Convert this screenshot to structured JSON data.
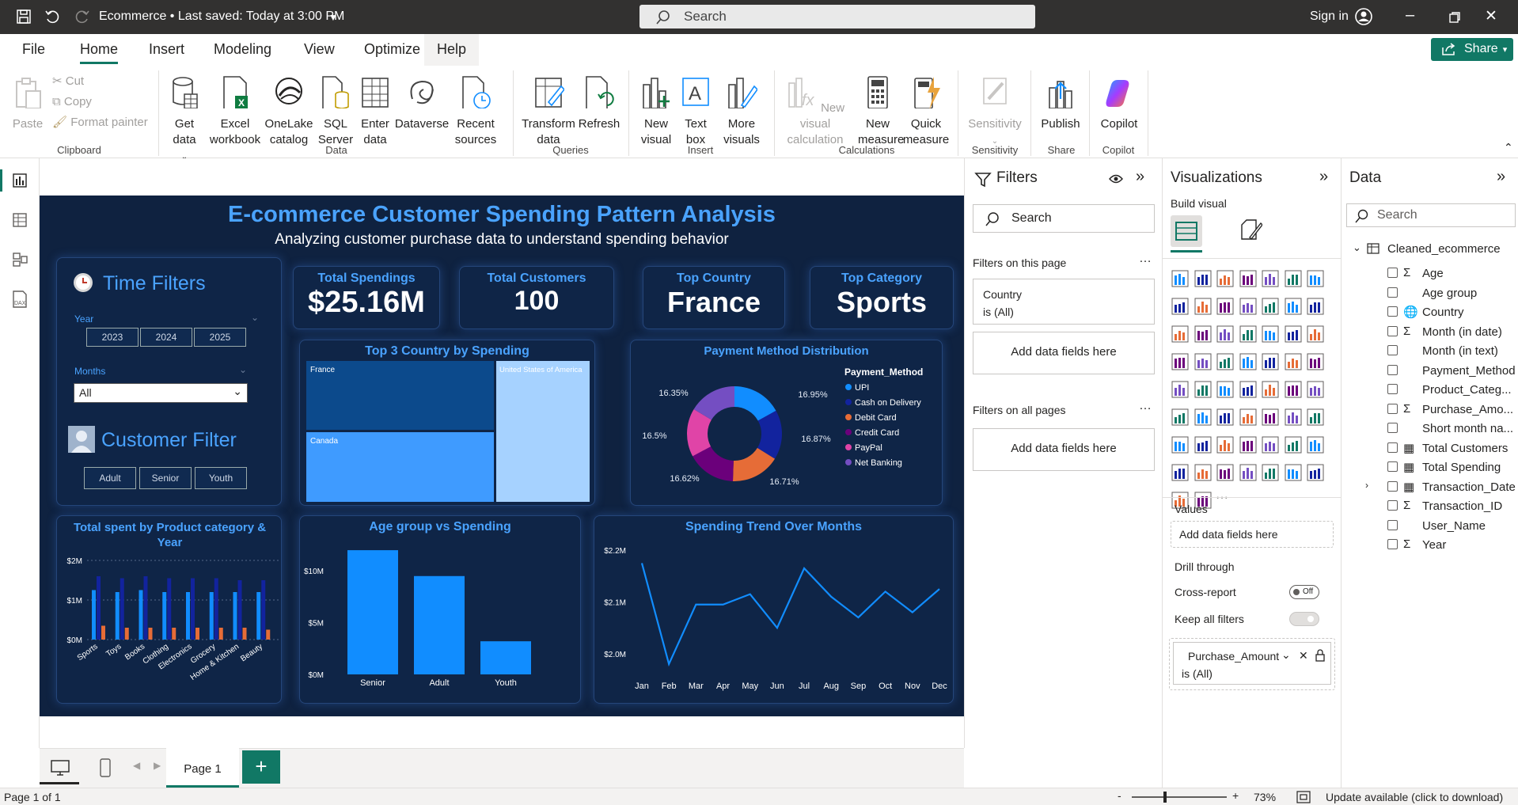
{
  "window": {
    "title": "Ecommerce • Last saved: Today at 3:00 PM",
    "search_placeholder": "Search",
    "sign_in": "Sign in"
  },
  "menu": {
    "items": [
      "File",
      "Home",
      "Insert",
      "Modeling",
      "View",
      "Optimize",
      "Help"
    ],
    "active": "Home",
    "share": "Share"
  },
  "ribbon": {
    "clipboard": {
      "paste": "Paste",
      "cut": "Cut",
      "copy": "Copy",
      "format_painter": "Format painter",
      "group": "Clipboard"
    },
    "data": {
      "get_data": "Get data",
      "excel": "Excel workbook",
      "onelake": "OneLake catalog",
      "sql": "SQL Server",
      "enter": "Enter data",
      "dataverse": "Dataverse",
      "recent": "Recent sources",
      "group": "Data"
    },
    "queries": {
      "transform": "Transform data",
      "refresh": "Refresh",
      "group": "Queries"
    },
    "insert": {
      "new_visual": "New visual",
      "text_box": "Text box",
      "more_visuals": "More visuals",
      "group": "Insert"
    },
    "calculations": {
      "new_visual_calc": "New visual calculation",
      "new_measure": "New measure",
      "quick_measure": "Quick measure",
      "group": "Calculations"
    },
    "sensitivity": {
      "label": "Sensitivity",
      "group": "Sensitivity"
    },
    "share": {
      "publish": "Publish",
      "group": "Share"
    },
    "copilot": {
      "label": "Copilot",
      "group": "Copilot"
    }
  },
  "report": {
    "title": "E-commerce Customer Spending Pattern Analysis",
    "subtitle": "Analyzing customer purchase data to understand spending behavior",
    "time_filters": {
      "title": "Time Filters",
      "year_label": "Year",
      "years": [
        "2023",
        "2024",
        "2025"
      ],
      "months_label": "Months",
      "months_value": "All"
    },
    "customer_filter": {
      "title": "Customer Filter",
      "options": [
        "Adult",
        "Senior",
        "Youth"
      ]
    },
    "kpis": [
      {
        "label": "Total Spendings",
        "value": "$25.16M"
      },
      {
        "label": "Total Customers",
        "value": "100"
      },
      {
        "label": "Top Country",
        "value": "France"
      },
      {
        "label": "Top Category",
        "value": "Sports"
      }
    ]
  },
  "chart_data": [
    {
      "type": "treemap",
      "title": "Top 3 Country by Spending",
      "categories": [
        "France",
        "Canada",
        "United States of America"
      ]
    },
    {
      "type": "pie",
      "title": "Payment Method Distribution",
      "legend_title": "Payment_Method",
      "legend_position": "right",
      "categories": [
        "UPI",
        "Cash on Delivery",
        "Debit Card",
        "Credit Card",
        "PayPal",
        "Net Banking"
      ],
      "values": [
        16.95,
        16.87,
        16.71,
        16.62,
        16.5,
        16.35
      ],
      "value_labels": [
        "16.95%",
        "16.87%",
        "16.71%",
        "16.62%",
        "16.5%",
        "16.35%"
      ],
      "colors": [
        "#118dff",
        "#12239e",
        "#e66c37",
        "#6b007b",
        "#e044a7",
        "#744ec2"
      ]
    },
    {
      "type": "bar",
      "title": "Total spent by Product category & Year",
      "categories": [
        "Sports",
        "Toys",
        "Books",
        "Clothing",
        "Electronics",
        "Grocery",
        "Home & Kitchen",
        "Beauty"
      ],
      "y_ticks": [
        "$0M",
        "$1M",
        "$2M"
      ],
      "ylim": [
        0,
        2
      ],
      "series": [
        {
          "values": [
            1.25,
            1.2,
            1.25,
            1.2,
            1.2,
            1.2,
            1.2,
            1.2
          ]
        },
        {
          "values": [
            1.6,
            1.55,
            1.6,
            1.55,
            1.55,
            1.55,
            1.5,
            1.5
          ]
        },
        {
          "values": [
            0.35,
            0.3,
            0.3,
            0.3,
            0.3,
            0.3,
            0.3,
            0.25
          ]
        }
      ],
      "colors": [
        "#118dff",
        "#12239e",
        "#e66c37"
      ]
    },
    {
      "type": "bar",
      "title": "Age group vs Spending",
      "categories": [
        "Senior",
        "Adult",
        "Youth"
      ],
      "values": [
        12,
        9.5,
        3.2
      ],
      "y_ticks": [
        "$0M",
        "$5M",
        "$10M"
      ],
      "ylim": [
        0,
        13
      ]
    },
    {
      "type": "line",
      "title": "Spending Trend Over Months",
      "x": [
        "Jan",
        "Feb",
        "Mar",
        "Apr",
        "May",
        "Jun",
        "Jul",
        "Aug",
        "Sep",
        "Oct",
        "Nov",
        "Dec"
      ],
      "values": [
        2.175,
        1.98,
        2.095,
        2.095,
        2.115,
        2.05,
        2.165,
        2.11,
        2.07,
        2.12,
        2.08,
        2.125
      ],
      "y_ticks": [
        "$2.0M",
        "$2.1M",
        "$2.2M"
      ],
      "ylim": [
        1.96,
        2.22
      ]
    }
  ],
  "filters": {
    "title": "Filters",
    "search": "Search",
    "on_page": "Filters on this page",
    "country_filter": "Country",
    "country_state": "is (All)",
    "add_fields": "Add data fields here",
    "on_all": "Filters on all pages"
  },
  "visualizations": {
    "title": "Visualizations",
    "build": "Build visual",
    "values": "Values",
    "add_fields": "Add data fields here",
    "drill": "Drill through",
    "cross_report": "Cross-report",
    "off": "Off",
    "keep_filters": "Keep all filters",
    "filter_field": "Purchase_Amount",
    "filter_state": "is (All)"
  },
  "data_pane": {
    "title": "Data",
    "search": "Search",
    "table": "Cleaned_ecommerce",
    "fields": [
      {
        "name": "Age",
        "icon": "Σ"
      },
      {
        "name": "Age group",
        "icon": ""
      },
      {
        "name": "Country",
        "icon": "🌐"
      },
      {
        "name": "Month (in date)",
        "icon": "Σ"
      },
      {
        "name": "Month (in text)",
        "icon": ""
      },
      {
        "name": "Payment_Method",
        "icon": ""
      },
      {
        "name": "Product_Categ...",
        "icon": ""
      },
      {
        "name": "Purchase_Amo...",
        "icon": "Σ"
      },
      {
        "name": "Short month na...",
        "icon": ""
      },
      {
        "name": "Total Customers",
        "icon": "▦"
      },
      {
        "name": "Total Spending",
        "icon": "▦"
      },
      {
        "name": "Transaction_Date",
        "icon": "▦"
      },
      {
        "name": "Transaction_ID",
        "icon": "Σ"
      },
      {
        "name": "User_Name",
        "icon": ""
      },
      {
        "name": "Year",
        "icon": "Σ"
      }
    ]
  },
  "pages": {
    "tab": "Page 1"
  },
  "status": {
    "page": "Page 1 of 1",
    "zoom": "73%",
    "update": "Update available (click to download)"
  }
}
